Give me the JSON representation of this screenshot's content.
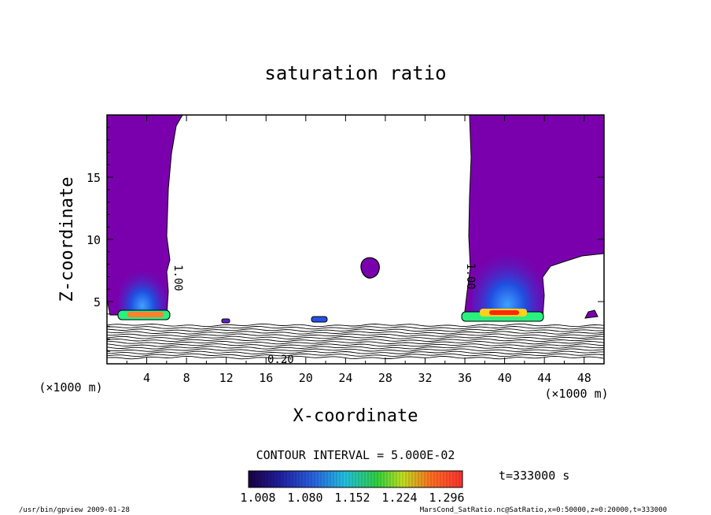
{
  "chart_data": {
    "type": "heatmap",
    "title": "saturation ratio",
    "xlabel": "X-coordinate",
    "ylabel": "Z-coordinate",
    "x_unit": "(×1000 m)",
    "y_unit": "(×1000 m)",
    "xlim": [
      0,
      50
    ],
    "ylim": [
      0,
      20
    ],
    "xticks": [
      "4",
      "8",
      "12",
      "16",
      "20",
      "24",
      "28",
      "32",
      "36",
      "40",
      "44",
      "48"
    ],
    "yticks": [
      "5",
      "10",
      "15"
    ],
    "contour_interval": "CONTOUR INTERVAL = 5.000E-02",
    "time_label": "t=333000 s",
    "colorbar": {
      "min": 1.008,
      "max": 1.296,
      "labels": [
        "1.008",
        "1.080",
        "1.152",
        "1.224",
        "1.296"
      ]
    },
    "contour_labels": [
      "1.00",
      "1.00",
      "0.20"
    ],
    "regions": [
      {
        "name": "left-plume",
        "x_range": [
          0,
          7.5
        ],
        "z_range": [
          3.5,
          20
        ]
      },
      {
        "name": "right-plume",
        "x_range": [
          35,
          50
        ],
        "z_range": [
          3.5,
          20
        ]
      },
      {
        "name": "blob",
        "x": 26.3,
        "z": 7.8
      }
    ],
    "colors": {
      "saturated": "#7a00ad",
      "plume_core": "#1a3cc8",
      "peak": "#ff2a00"
    }
  },
  "footer": {
    "left": "/usr/bin/gpview  2009-01-28",
    "right": "MarsCond_SatRatio.nc@SatRatio,x=0:50000,z=0:20000,t=333000"
  }
}
